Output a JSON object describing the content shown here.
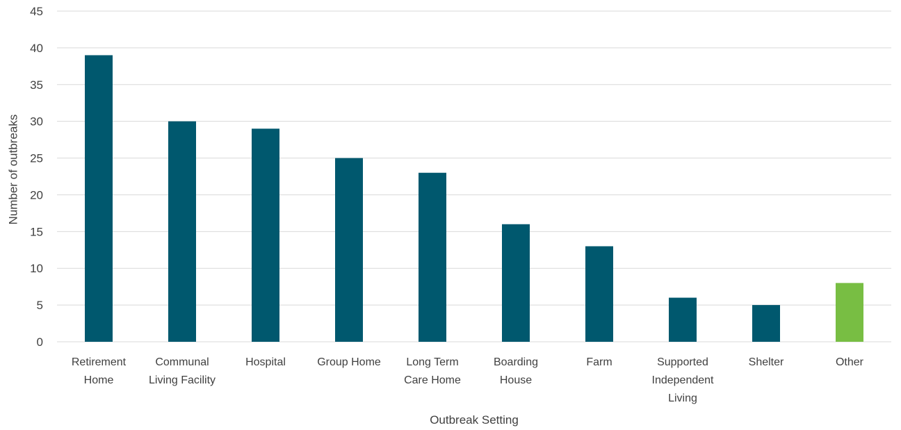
{
  "chart_data": {
    "type": "bar",
    "categories": [
      "Retirement Home",
      "Communal Living Facility",
      "Hospital",
      "Group Home",
      "Long Term Care Home",
      "Boarding House",
      "Farm",
      "Supported Independent Living",
      "Shelter",
      "Other"
    ],
    "category_lines": [
      [
        "Retirement",
        "Home"
      ],
      [
        "Communal",
        "Living Facility"
      ],
      [
        "Hospital"
      ],
      [
        "Group Home"
      ],
      [
        "Long Term",
        "Care Home"
      ],
      [
        "Boarding",
        "House"
      ],
      [
        "Farm"
      ],
      [
        "Supported",
        "Independent",
        "Living"
      ],
      [
        "Shelter"
      ],
      [
        "Other"
      ]
    ],
    "values": [
      39,
      30,
      29,
      25,
      23,
      16,
      13,
      6,
      5,
      8
    ],
    "bar_colors": [
      "#00586e",
      "#00586e",
      "#00586e",
      "#00586e",
      "#00586e",
      "#00586e",
      "#00586e",
      "#00586e",
      "#00586e",
      "#78be43"
    ],
    "xlabel": "Outbreak Setting",
    "ylabel": "Number of outbreaks",
    "ylim": [
      0,
      45
    ],
    "yticks": [
      0,
      5,
      10,
      15,
      20,
      25,
      30,
      35,
      40,
      45
    ],
    "grid": true,
    "legend": "none"
  }
}
